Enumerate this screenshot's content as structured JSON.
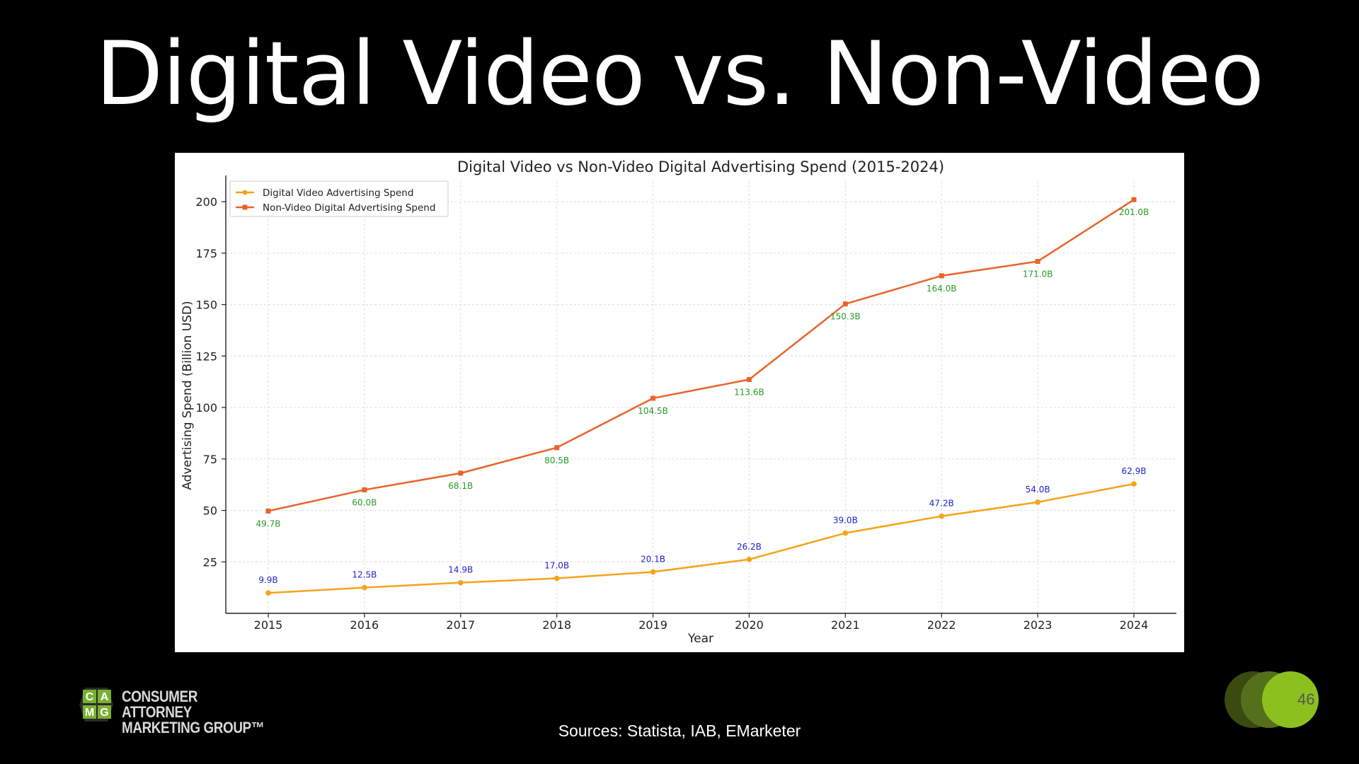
{
  "slide": {
    "title": "Digital Video vs. Non-Video",
    "sources": "Sources: Statista, IAB, EMarketer",
    "page_number": "46",
    "logo": {
      "letters": [
        "C",
        "A",
        "M",
        "G"
      ],
      "line1": "CONSUMER ATTORNEY",
      "line2": "MARKETING GROUP™"
    }
  },
  "colors": {
    "video": "#f5a31a",
    "nonvideo": "#e8642a",
    "video_label": "#2222cc",
    "nonvideo_label": "#2a9a2a",
    "logo_green": "#7ab030",
    "badge_dark": "#3a4a10",
    "badge_mid": "#55701a",
    "badge_light": "#8cc01e"
  },
  "chart_data": {
    "type": "line",
    "title": "Digital Video vs Non-Video Digital Advertising Spend (2015-2024)",
    "xlabel": "Year",
    "ylabel": "Advertising Spend (Billion USD)",
    "x": [
      2015,
      2016,
      2017,
      2018,
      2019,
      2020,
      2021,
      2022,
      2023,
      2024
    ],
    "yticks": [
      25,
      50,
      75,
      100,
      125,
      150,
      175,
      200
    ],
    "ylim": [
      0,
      210
    ],
    "grid": true,
    "legend_position": "top-left",
    "series": [
      {
        "name": "Digital Video Advertising Spend",
        "marker": "circle",
        "values": [
          9.9,
          12.5,
          14.9,
          17.0,
          20.1,
          26.2,
          39.0,
          47.2,
          54.0,
          62.9
        ],
        "labels": [
          "9.9B",
          "12.5B",
          "14.9B",
          "17.0B",
          "20.1B",
          "26.2B",
          "39.0B",
          "47.2B",
          "54.0B",
          "62.9B"
        ],
        "label_placement": "above"
      },
      {
        "name": "Non-Video Digital Advertising Spend",
        "marker": "square",
        "values": [
          49.7,
          60.0,
          68.1,
          80.5,
          104.5,
          113.6,
          150.3,
          164.0,
          171.0,
          201.0
        ],
        "labels": [
          "49.7B",
          "60.0B",
          "68.1B",
          "80.5B",
          "104.5B",
          "113.6B",
          "150.3B",
          "164.0B",
          "171.0B",
          "201.0B"
        ],
        "label_placement": "below"
      }
    ]
  }
}
